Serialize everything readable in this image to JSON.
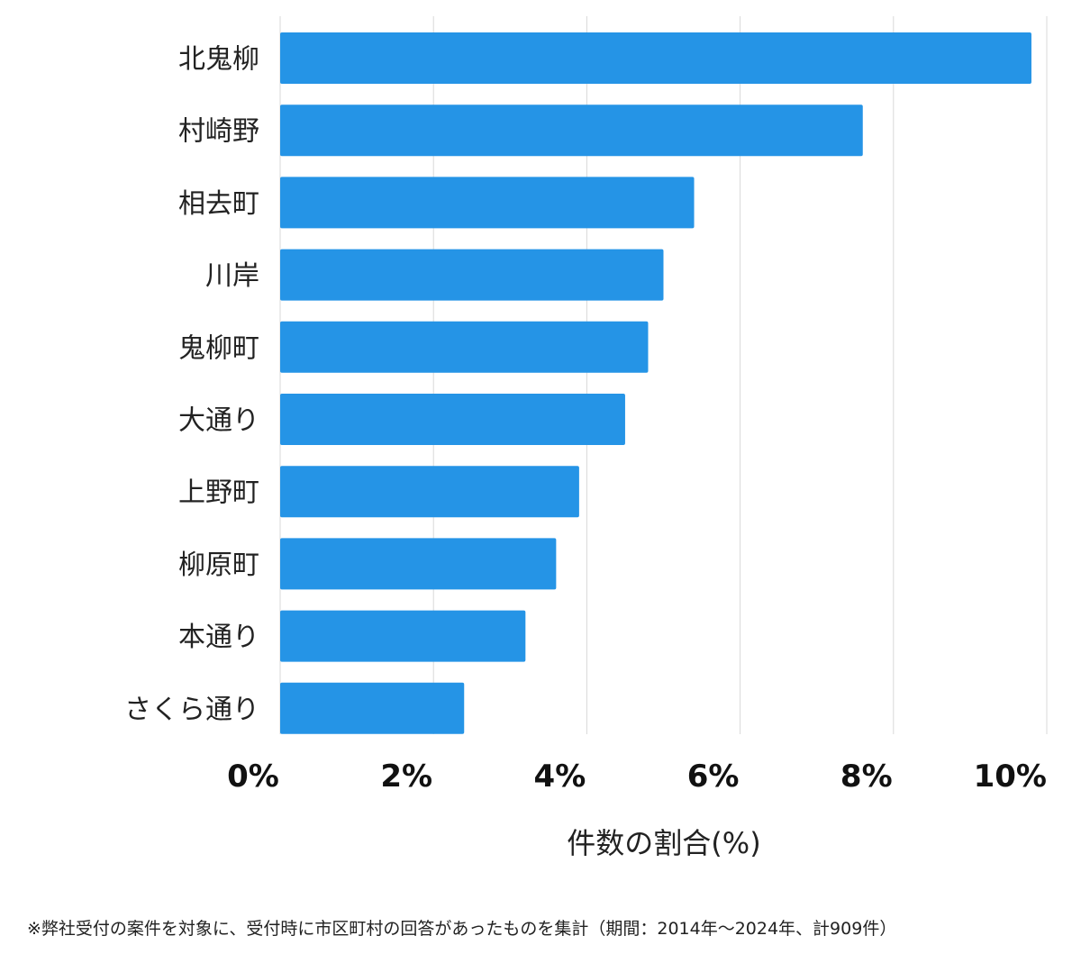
{
  "chart_data": {
    "type": "bar",
    "orientation": "horizontal",
    "categories": [
      "北鬼柳",
      "村崎野",
      "相去町",
      "川岸",
      "鬼柳町",
      "大通り",
      "上野町",
      "柳原町",
      "本通り",
      "さくら通り"
    ],
    "values": [
      9.8,
      7.6,
      5.4,
      5.0,
      4.8,
      4.5,
      3.9,
      3.6,
      3.2,
      2.4
    ],
    "xlabel": "件数の割合(%)",
    "ylabel": "",
    "xlim": [
      0,
      10
    ],
    "ticks": [
      0,
      2,
      4,
      6,
      8,
      10
    ],
    "tick_labels": [
      "0%",
      "2%",
      "4%",
      "6%",
      "8%",
      "10%"
    ],
    "grid": true,
    "bar_color": "#2594e6",
    "grid_color": "#d9d9d9"
  },
  "footnote": "※弊社受付の案件を対象に、受付時に市区町村の回答があったものを集計（期間：2014年～2024年、計909件）"
}
